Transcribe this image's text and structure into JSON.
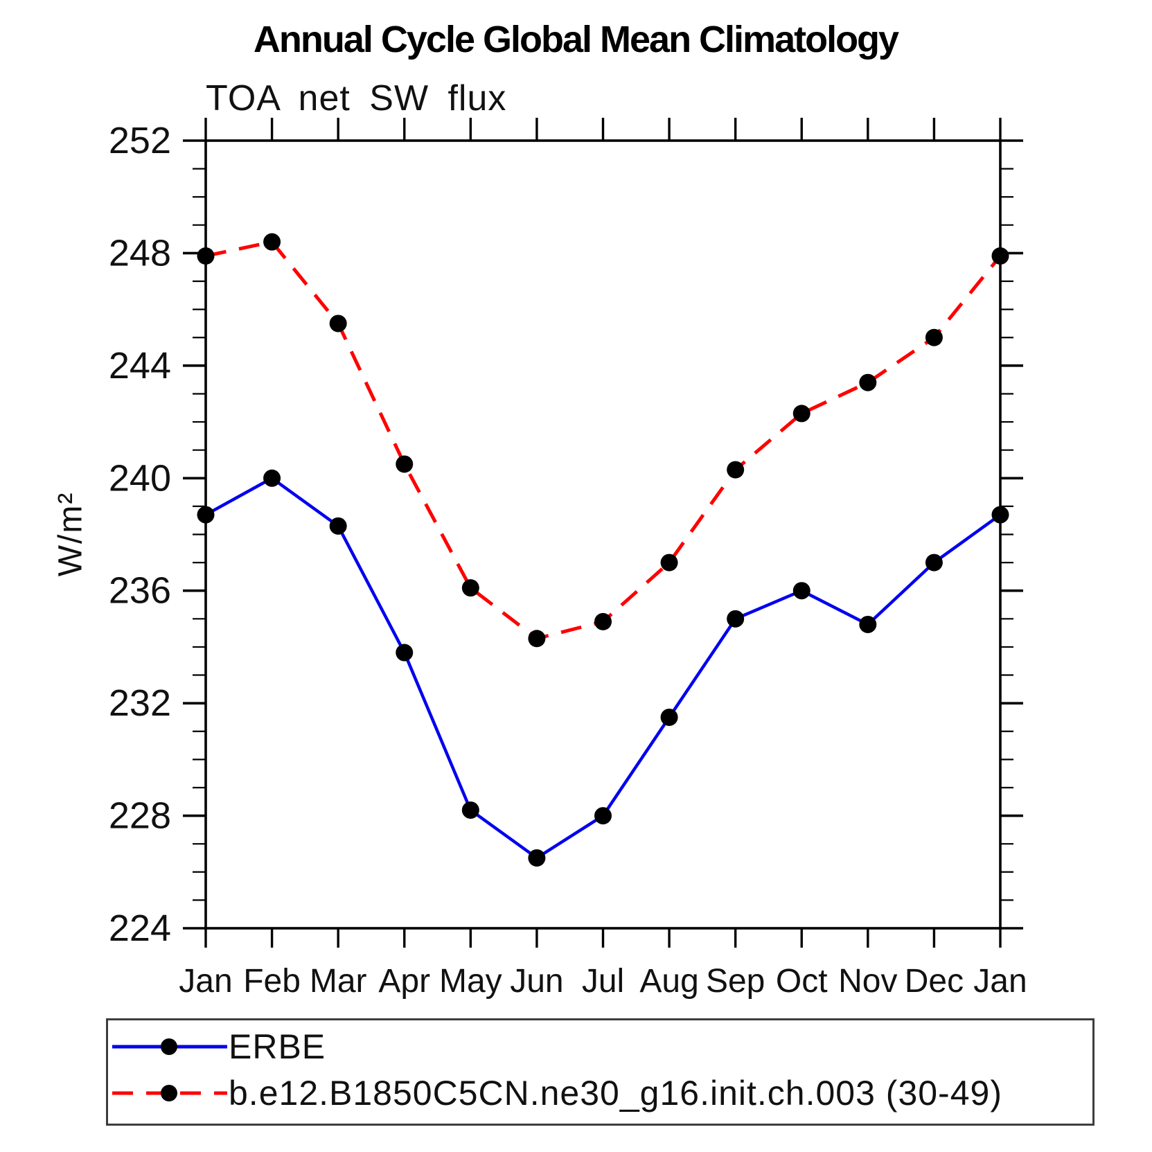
{
  "chart_data": {
    "type": "line",
    "title": "Annual Cycle Global Mean Climatology",
    "subtitle": "TOA net SW flux",
    "ylabel": "W/m²",
    "categories": [
      "Jan",
      "Feb",
      "Mar",
      "Apr",
      "May",
      "Jun",
      "Jul",
      "Aug",
      "Sep",
      "Oct",
      "Nov",
      "Dec",
      "Jan"
    ],
    "y_axis": {
      "min": 224,
      "max": 252,
      "major_step": 4,
      "minor_step": 1,
      "tick_labels": [
        "224",
        "228",
        "232",
        "236",
        "240",
        "244",
        "248",
        "252"
      ]
    },
    "grid": false,
    "legend_position": "bottom-left",
    "series": [
      {
        "name": "ERBE",
        "color": "#0000ee",
        "line_style": "solid",
        "marker": "filled-circle",
        "marker_color": "#000000",
        "values": [
          238.7,
          240.0,
          238.3,
          233.8,
          228.2,
          226.5,
          228.0,
          231.5,
          235.0,
          236.0,
          234.8,
          237.0,
          238.7
        ]
      },
      {
        "name": "b.e12.B1850C5CN.ne30_g16.init.ch.003 (30-49)",
        "color": "#ff0000",
        "line_style": "dashed",
        "marker": "filled-circle",
        "marker_color": "#000000",
        "values": [
          247.9,
          248.4,
          245.5,
          240.5,
          236.1,
          234.3,
          234.9,
          237.0,
          240.3,
          242.3,
          243.4,
          245.0,
          247.9
        ]
      }
    ]
  }
}
